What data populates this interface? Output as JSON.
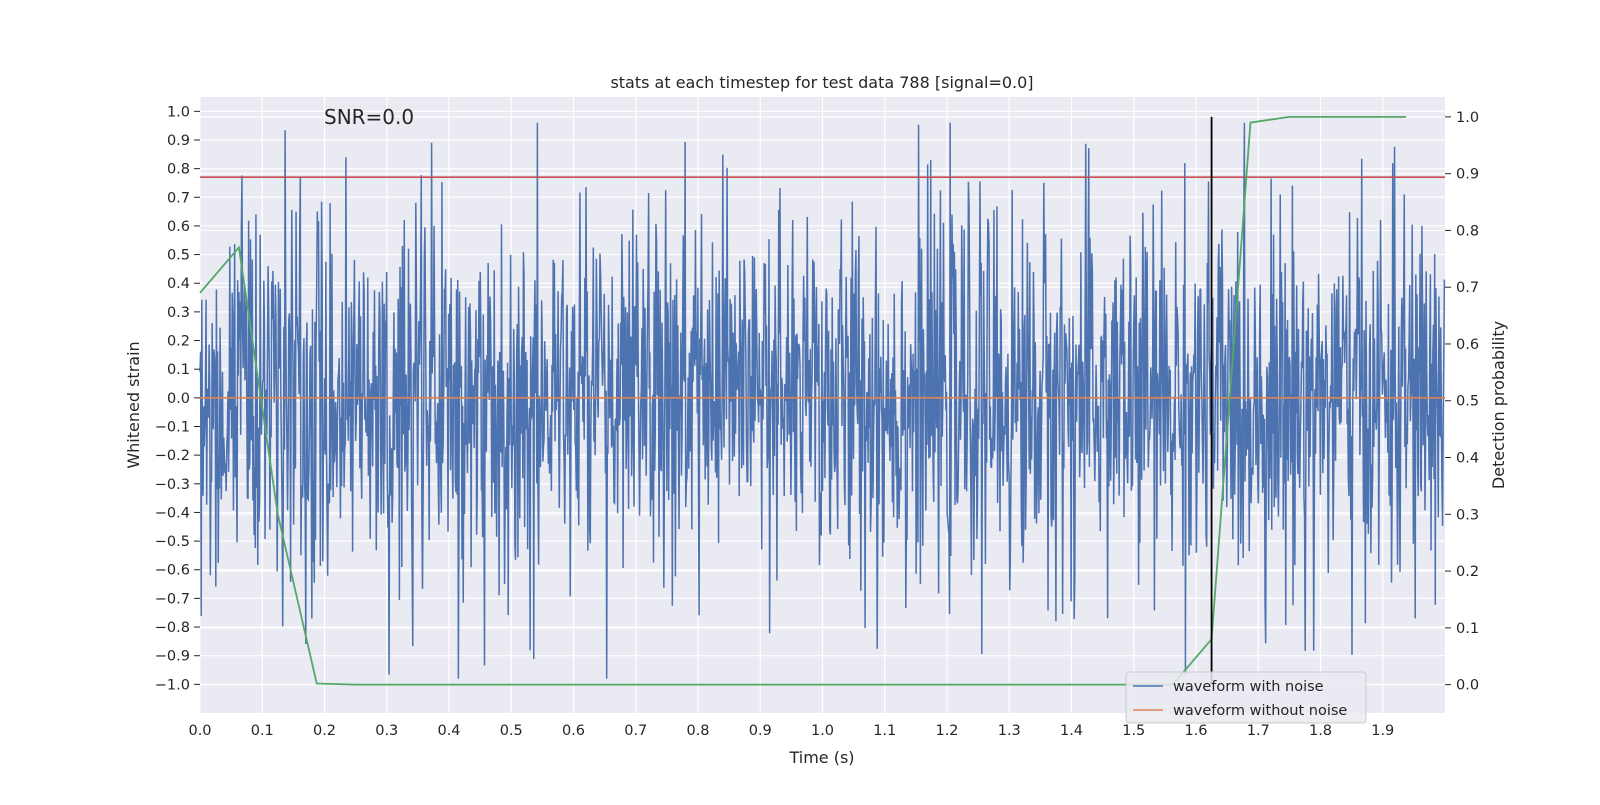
{
  "chart_data": {
    "type": "line",
    "title": "stats at each timestep for test data 788 [signal=0.0]",
    "xlabel": "Time (s)",
    "ylabel": "Whitened strain",
    "y2label": "Detection probability",
    "xlim": [
      0.0,
      2.0
    ],
    "ylim": [
      -1.1,
      1.05
    ],
    "y2lim": [
      -0.05,
      1.035
    ],
    "xticks": [
      "0.0",
      "0.1",
      "0.2",
      "0.3",
      "0.4",
      "0.5",
      "0.6",
      "0.7",
      "0.8",
      "0.9",
      "1.0",
      "1.1",
      "1.2",
      "1.3",
      "1.4",
      "1.5",
      "1.6",
      "1.7",
      "1.8",
      "1.9"
    ],
    "yticks": [
      "1.0",
      "0.9",
      "0.8",
      "0.7",
      "0.6",
      "0.5",
      "0.4",
      "0.3",
      "0.2",
      "0.1",
      "0.0",
      "−0.1",
      "−0.2",
      "−0.3",
      "−0.4",
      "−0.5",
      "−0.6",
      "−0.7",
      "−0.8",
      "−0.9",
      "−1.0"
    ],
    "y2ticks": [
      "1.0",
      "0.9",
      "0.8",
      "0.7",
      "0.6",
      "0.5",
      "0.4",
      "0.3",
      "0.2",
      "0.1",
      "0.0"
    ],
    "grid": true,
    "legend_position": "lower-right",
    "annotation": "SNR=0.0",
    "series": [
      {
        "name": "waveform with noise",
        "color": "#4c72b0",
        "axis": "left",
        "style": "noise",
        "points": 2048,
        "amplitude_std": 0.32,
        "observed_range": [
          -0.98,
          0.96
        ]
      },
      {
        "name": "waveform without noise",
        "color": "#dd8452",
        "axis": "left",
        "value": 0.0
      },
      {
        "color": "#55a868",
        "axis": "right",
        "x": [
          0.0,
          0.0625,
          0.125,
          0.1875,
          0.25,
          0.3125,
          0.375,
          0.4375,
          0.5,
          0.5625,
          0.625,
          0.6875,
          0.75,
          0.8125,
          0.875,
          0.9375,
          1.0,
          1.0625,
          1.125,
          1.1875,
          1.25,
          1.3125,
          1.375,
          1.4375,
          1.5,
          1.5625,
          1.625,
          1.6875,
          1.75,
          1.8125,
          1.875,
          1.9375
        ],
        "y": [
          0.69,
          0.77,
          0.3,
          0.002,
          0.0,
          0.0,
          0.0,
          0.0,
          0.0,
          0.0,
          0.0,
          0.0,
          0.0,
          0.0,
          0.0,
          0.0,
          0.0,
          0.0,
          0.0,
          0.0,
          0.0,
          0.0,
          0.0,
          0.0,
          0.0,
          0.0,
          0.08,
          0.99,
          1.0,
          1.0,
          1.0,
          1.0
        ]
      }
    ],
    "hlines": [
      {
        "y": 0.77,
        "color": "#c44e52",
        "axis": "left"
      }
    ],
    "vlines": [
      {
        "x": 1.625,
        "color": "#000000",
        "y2_range": [
          0.0,
          1.0
        ]
      }
    ]
  }
}
